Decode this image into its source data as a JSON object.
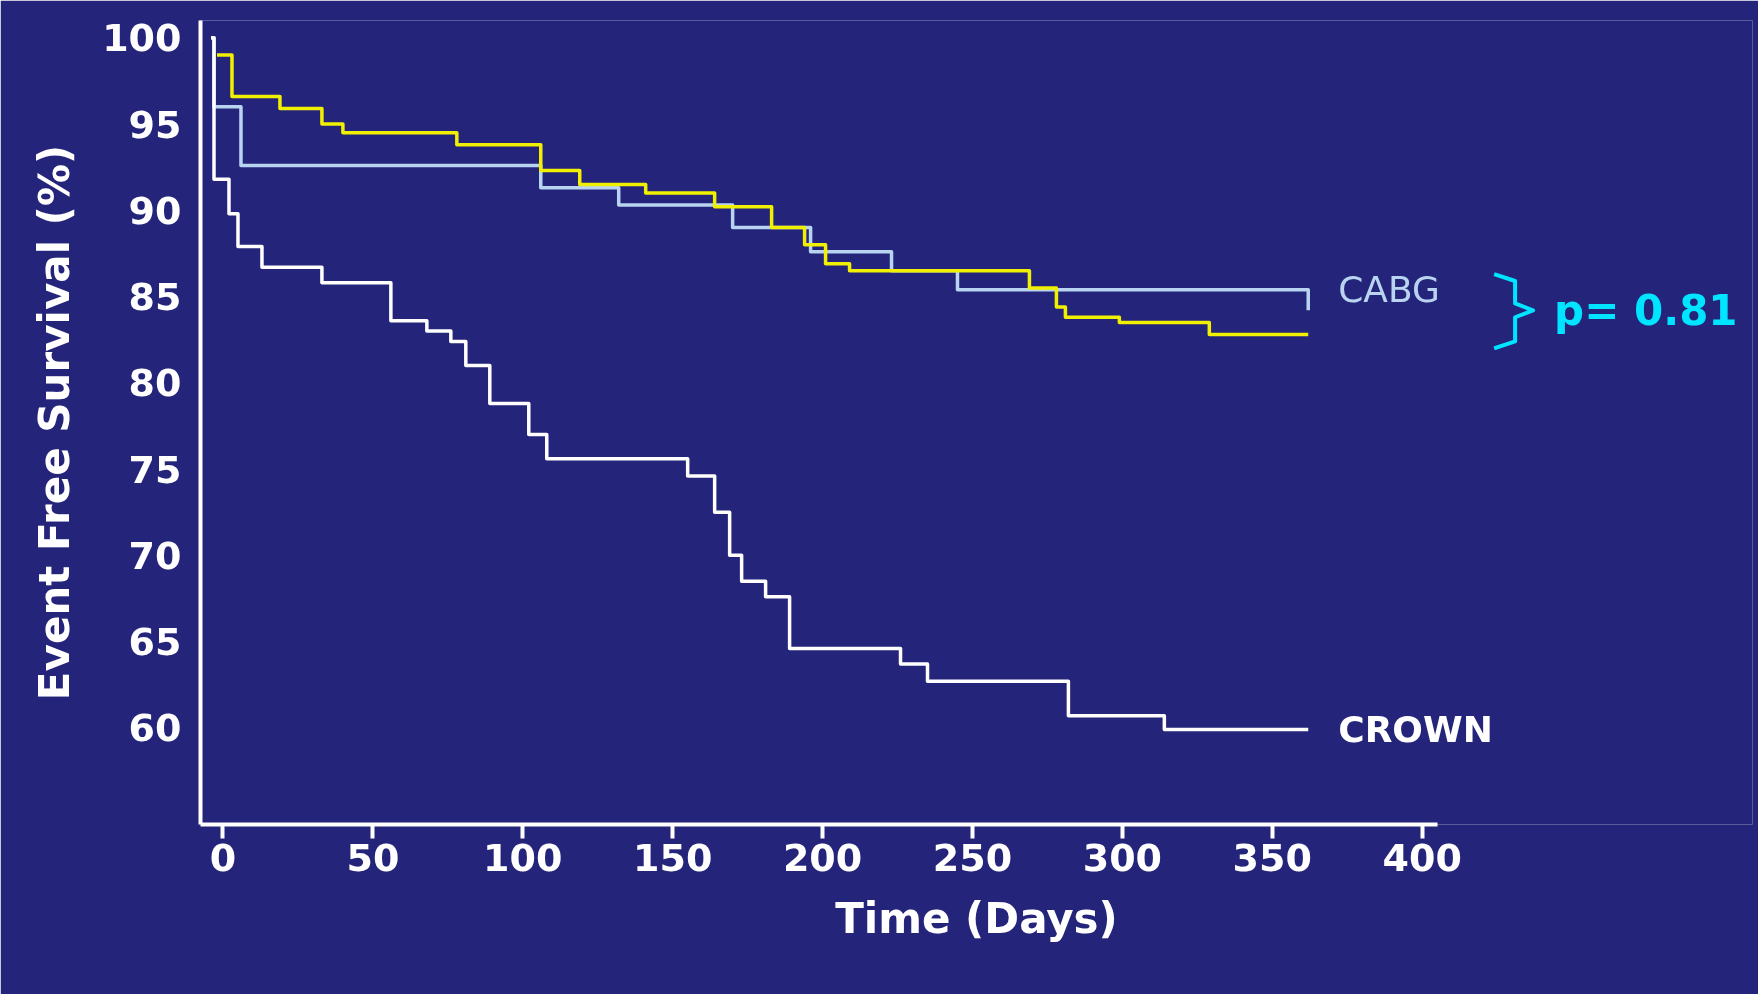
{
  "chart_data": {
    "type": "step",
    "xlabel": "Time (Days)",
    "ylabel": "Event Free Survival (%)",
    "xlim": [
      -7.5,
      405
    ],
    "xticks": [
      0,
      50,
      100,
      150,
      200,
      250,
      300,
      350,
      400
    ],
    "ylim": [
      54.4,
      101
    ],
    "yticks": [
      60,
      65,
      70,
      75,
      80,
      85,
      90,
      95,
      100
    ],
    "grid": false,
    "marker": "none",
    "line_style": "solid",
    "series": [
      {
        "name": "CABG",
        "color": "#b8d4f0",
        "x": [
          -4,
          -3,
          6,
          106,
          132,
          170,
          196,
          223,
          245,
          362,
          362
        ],
        "values": [
          100,
          96,
          92.6,
          91.3,
          90.3,
          89.0,
          87.6,
          86.5,
          85.4,
          85.4,
          84.2
        ]
      },
      {
        "color": "#f0f000",
        "x": [
          -2,
          3,
          19,
          33,
          40,
          78,
          106,
          119,
          141,
          164,
          183,
          194,
          201,
          209,
          269,
          278,
          281,
          299,
          329,
          342,
          362
        ],
        "values": [
          99,
          96.6,
          95.9,
          95,
          94.5,
          93.8,
          92.3,
          91.5,
          91.0,
          90.2,
          89.0,
          88.0,
          86.9,
          86.5,
          85.5,
          84.4,
          83.8,
          83.5,
          82.8,
          82.8,
          82.8
        ]
      },
      {
        "name": "CROWN",
        "color": "#ffffff",
        "x": [
          -4,
          -3,
          2,
          5,
          13,
          33,
          56,
          68,
          76,
          81,
          89,
          102,
          108,
          155,
          164,
          169,
          173,
          181,
          189,
          226,
          235,
          282,
          314,
          362
        ],
        "values": [
          100,
          91.8,
          89.8,
          87.9,
          86.7,
          85.8,
          83.6,
          83.0,
          82.4,
          81.0,
          78.8,
          77.0,
          75.6,
          74.6,
          72.5,
          70.0,
          68.5,
          67.6,
          64.6,
          63.7,
          62.7,
          60.7,
          59.9,
          59.9
        ]
      }
    ],
    "annotations": [
      "p= 0.81"
    ]
  }
}
